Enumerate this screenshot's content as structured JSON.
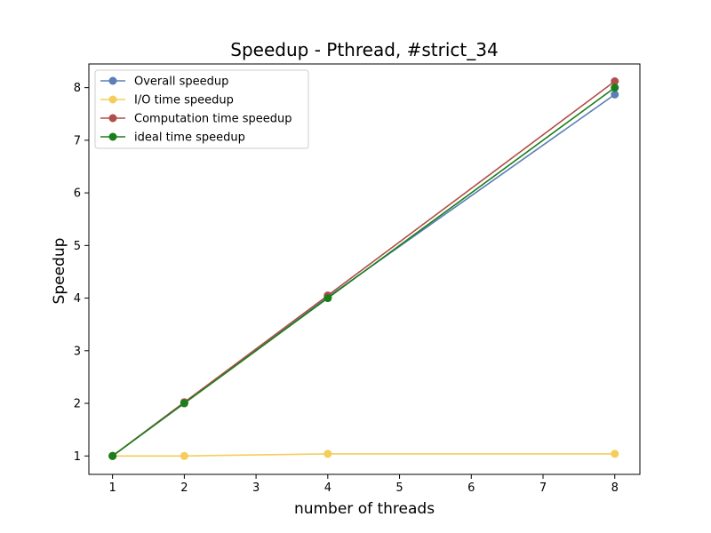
{
  "chart_data": {
    "type": "line",
    "title": "Speedup - Pthread, #strict_34",
    "xlabel": "number of threads",
    "ylabel": "Speedup",
    "x": [
      1,
      2,
      4,
      8
    ],
    "xlim": [
      0.67,
      8.35
    ],
    "ylim": [
      0.65,
      8.45
    ],
    "xticks": [
      1,
      2,
      3,
      4,
      5,
      6,
      7,
      8
    ],
    "yticks": [
      1,
      2,
      3,
      4,
      5,
      6,
      7,
      8
    ],
    "grid": false,
    "legend_position": "top-left",
    "series": [
      {
        "name": "Overall speedup",
        "color": "#5b7fb6",
        "values": [
          1.0,
          2.02,
          4.02,
          7.87
        ]
      },
      {
        "name": "I/O time speedup",
        "color": "#f5cd5b",
        "values": [
          1.0,
          1.0,
          1.04,
          1.04
        ]
      },
      {
        "name": "Computation time speedup",
        "color": "#b04f4a",
        "values": [
          1.0,
          2.02,
          4.05,
          8.12
        ]
      },
      {
        "name": "ideal time speedup",
        "color": "#1a7f1a",
        "values": [
          1,
          2,
          4,
          8
        ]
      }
    ]
  }
}
